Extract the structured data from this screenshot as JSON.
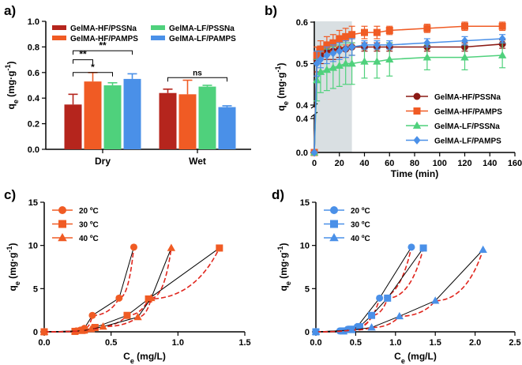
{
  "chart_data": [
    {
      "panel": "a)",
      "type": "bar",
      "categories": [
        "Dry",
        "Wet"
      ],
      "ylabel": "qe (mg·g-1)",
      "ylim": [
        0,
        1.0
      ],
      "yticks": [
        0.0,
        0.2,
        0.4,
        0.6,
        0.8,
        1.0
      ],
      "ytick_labels": [
        "0.0",
        "0.2",
        "0.4",
        "0.6",
        "0.8",
        "1.0"
      ],
      "series": [
        {
          "name": "GelMA-HF/PSSNa",
          "color": "#b5251d",
          "values": [
            0.35,
            0.44
          ],
          "errors": [
            0.08,
            0.03
          ]
        },
        {
          "name": "GelMA-HF/PAMPS",
          "color": "#f05b24",
          "values": [
            0.53,
            0.43
          ],
          "errors": [
            0.07,
            0.11
          ]
        },
        {
          "name": "GelMA-LF/PSSNa",
          "color": "#4fd17c",
          "values": [
            0.5,
            0.49
          ],
          "errors": [
            0.02,
            0.01
          ]
        },
        {
          "name": "GelMA-LF/PAMPS",
          "color": "#4a90e8",
          "values": [
            0.55,
            0.33
          ],
          "errors": [
            0.04,
            0.01
          ]
        }
      ],
      "significance": [
        {
          "label": "*",
          "group": "Dry",
          "from": 0,
          "to": 2,
          "y": 0.6
        },
        {
          "label": "**",
          "group": "Dry",
          "from": 0,
          "to": 1,
          "y": 0.7
        },
        {
          "label": "**",
          "group": "Dry",
          "from": 0,
          "to": 3,
          "y": 0.77
        },
        {
          "label": "ns",
          "group": "Wet",
          "from": 0,
          "to": 3,
          "y": 0.56
        }
      ]
    },
    {
      "panel": "b)",
      "type": "line",
      "xlabel": "Time (min)",
      "ylabel": "qe (mg·g-1)",
      "xlim": [
        0,
        160
      ],
      "xticks": [
        0,
        20,
        40,
        60,
        80,
        100,
        120,
        140,
        160
      ],
      "xtick_labels": [
        "0",
        "20",
        "40",
        "60",
        "80",
        "100",
        "120",
        "140",
        "160"
      ],
      "ytick_labels_upper": [
        "0.4",
        "0.5",
        "0.6"
      ],
      "ytick_labels_lower": [
        "0.0",
        "0.4"
      ],
      "shaded_region": [
        0,
        30
      ],
      "x": [
        0,
        2,
        5,
        10,
        15,
        20,
        25,
        30,
        40,
        50,
        60,
        90,
        120,
        150
      ],
      "series": [
        {
          "name": "GelMA-HF/PSSNa",
          "color": "#8b1a14",
          "marker": "circle",
          "values": [
            0.0,
            0.51,
            0.52,
            0.53,
            0.53,
            0.535,
            0.535,
            0.54,
            0.54,
            0.54,
            0.54,
            0.54,
            0.54,
            0.547
          ],
          "errors": [
            0,
            0.03,
            0.02,
            0.02,
            0.02,
            0.02,
            0.02,
            0.02,
            0.01,
            0.01,
            0.01,
            0.01,
            0.01,
            0.01
          ]
        },
        {
          "name": "GelMA-HF/PAMPS",
          "color": "#f05b24",
          "marker": "square",
          "values": [
            0.0,
            0.52,
            0.535,
            0.545,
            0.55,
            0.56,
            0.565,
            0.57,
            0.575,
            0.575,
            0.58,
            0.585,
            0.59,
            0.59
          ],
          "errors": [
            0,
            0.02,
            0.02,
            0.02,
            0.02,
            0.02,
            0.02,
            0.02,
            0.015,
            0.015,
            0.01,
            0.01,
            0.01,
            0.01
          ]
        },
        {
          "name": "GelMA-LF/PSSNa",
          "color": "#4fd17c",
          "marker": "triangle",
          "values": [
            0.0,
            0.46,
            0.48,
            0.485,
            0.49,
            0.495,
            0.5,
            0.5,
            0.505,
            0.505,
            0.51,
            0.515,
            0.515,
            0.52
          ],
          "errors": [
            0,
            0.05,
            0.05,
            0.05,
            0.05,
            0.05,
            0.05,
            0.05,
            0.04,
            0.04,
            0.04,
            0.03,
            0.03,
            0.03
          ]
        },
        {
          "name": "GelMA-LF/PAMPS",
          "color": "#4a90e8",
          "marker": "diamond",
          "values": [
            0.0,
            0.5,
            0.51,
            0.52,
            0.525,
            0.53,
            0.535,
            0.54,
            0.545,
            0.545,
            0.545,
            0.55,
            0.555,
            0.56
          ],
          "errors": [
            0,
            0.03,
            0.02,
            0.02,
            0.02,
            0.02,
            0.02,
            0.02,
            0.01,
            0.01,
            0.01,
            0.01,
            0.01,
            0.01
          ]
        }
      ]
    },
    {
      "panel": "c)",
      "type": "scatter",
      "xlabel": "Ce (mg/L)",
      "ylabel": "qe (mg·g-1)",
      "xlim": [
        0,
        1.5
      ],
      "ylim": [
        0,
        15
      ],
      "xticks": [
        0.0,
        0.5,
        1.0,
        1.5
      ],
      "xtick_labels": [
        "0.0",
        "0.5",
        "1.0",
        "1.5"
      ],
      "yticks": [
        0,
        5,
        10,
        15
      ],
      "ytick_labels": [
        "0",
        "5",
        "10",
        "15"
      ],
      "color": "#f05b24",
      "series": [
        {
          "name": "20 ºC",
          "marker": "circle",
          "x": [
            0,
            0.24,
            0.27,
            0.3,
            0.36,
            0.56,
            0.67
          ],
          "y": [
            0,
            0.1,
            0.2,
            0.4,
            1.9,
            3.9,
            9.8
          ]
        },
        {
          "name": "30 ºC",
          "marker": "square",
          "x": [
            0,
            0.23,
            0.3,
            0.38,
            0.62,
            0.78,
            1.31
          ],
          "y": [
            0,
            0.05,
            0.2,
            0.5,
            1.9,
            3.8,
            9.7
          ]
        },
        {
          "name": "40 ºC",
          "marker": "triangle",
          "x": [
            0,
            0.28,
            0.35,
            0.44,
            0.7,
            0.8,
            0.95
          ],
          "y": [
            0,
            0.1,
            0.3,
            0.6,
            1.7,
            3.9,
            9.7
          ]
        }
      ]
    },
    {
      "panel": "d)",
      "type": "scatter",
      "xlabel": "Ce (mg/L)",
      "ylabel": "qe (mg·g-1)",
      "xlim": [
        0,
        2.5
      ],
      "ylim": [
        0,
        15
      ],
      "xticks": [
        0.0,
        0.5,
        1.0,
        1.5,
        2.0,
        2.5
      ],
      "xtick_labels": [
        "0.0",
        "0.5",
        "1.0",
        "1.5",
        "2.0",
        "2.5"
      ],
      "yticks": [
        0,
        5,
        10,
        15
      ],
      "ytick_labels": [
        "0",
        "5",
        "10",
        "15"
      ],
      "color": "#4a90e8",
      "series": [
        {
          "name": "20 ºC",
          "marker": "circle",
          "x": [
            0,
            0.3,
            0.4,
            0.52,
            0.8,
            1.2
          ],
          "y": [
            0,
            0.1,
            0.3,
            0.6,
            3.9,
            9.8
          ]
        },
        {
          "name": "30 ºC",
          "marker": "square",
          "x": [
            0,
            0.35,
            0.45,
            0.55,
            0.7,
            0.9,
            1.35
          ],
          "y": [
            0,
            0.1,
            0.3,
            0.6,
            1.9,
            3.9,
            9.7
          ]
        },
        {
          "name": "40 ºC",
          "marker": "triangle",
          "x": [
            0,
            0.45,
            0.7,
            1.05,
            1.5,
            2.1
          ],
          "y": [
            0,
            0.2,
            0.5,
            1.8,
            3.6,
            9.5
          ]
        }
      ]
    }
  ]
}
